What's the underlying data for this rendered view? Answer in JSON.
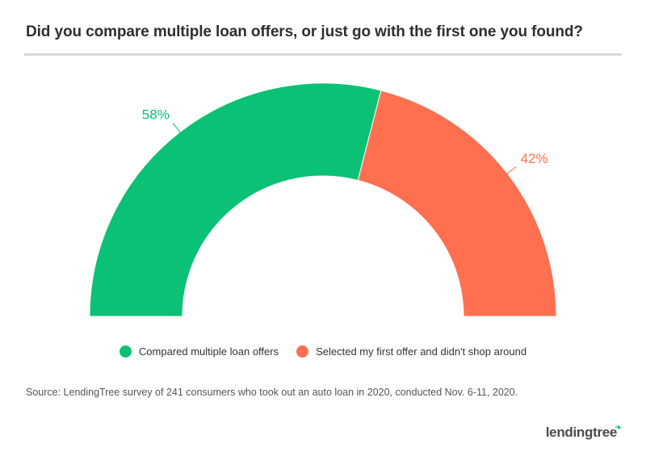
{
  "title": "Did you compare multiple loan offers, or just go with the first one you found?",
  "source": "Source: LendingTree survey of 241 consumers who took out an auto loan in 2020, conducted Nov. 6-11, 2020.",
  "brand": "lendingtree",
  "chart_data": {
    "type": "pie",
    "variant": "half-donut",
    "series": [
      {
        "name": "Compared multiple loan offers",
        "value": 58,
        "label": "58%",
        "color": "#0ac176"
      },
      {
        "name": "Selected my first offer and didn't shop around",
        "value": 42,
        "label": "42%",
        "color": "#fe7050"
      }
    ],
    "legend_position": "bottom-center"
  }
}
